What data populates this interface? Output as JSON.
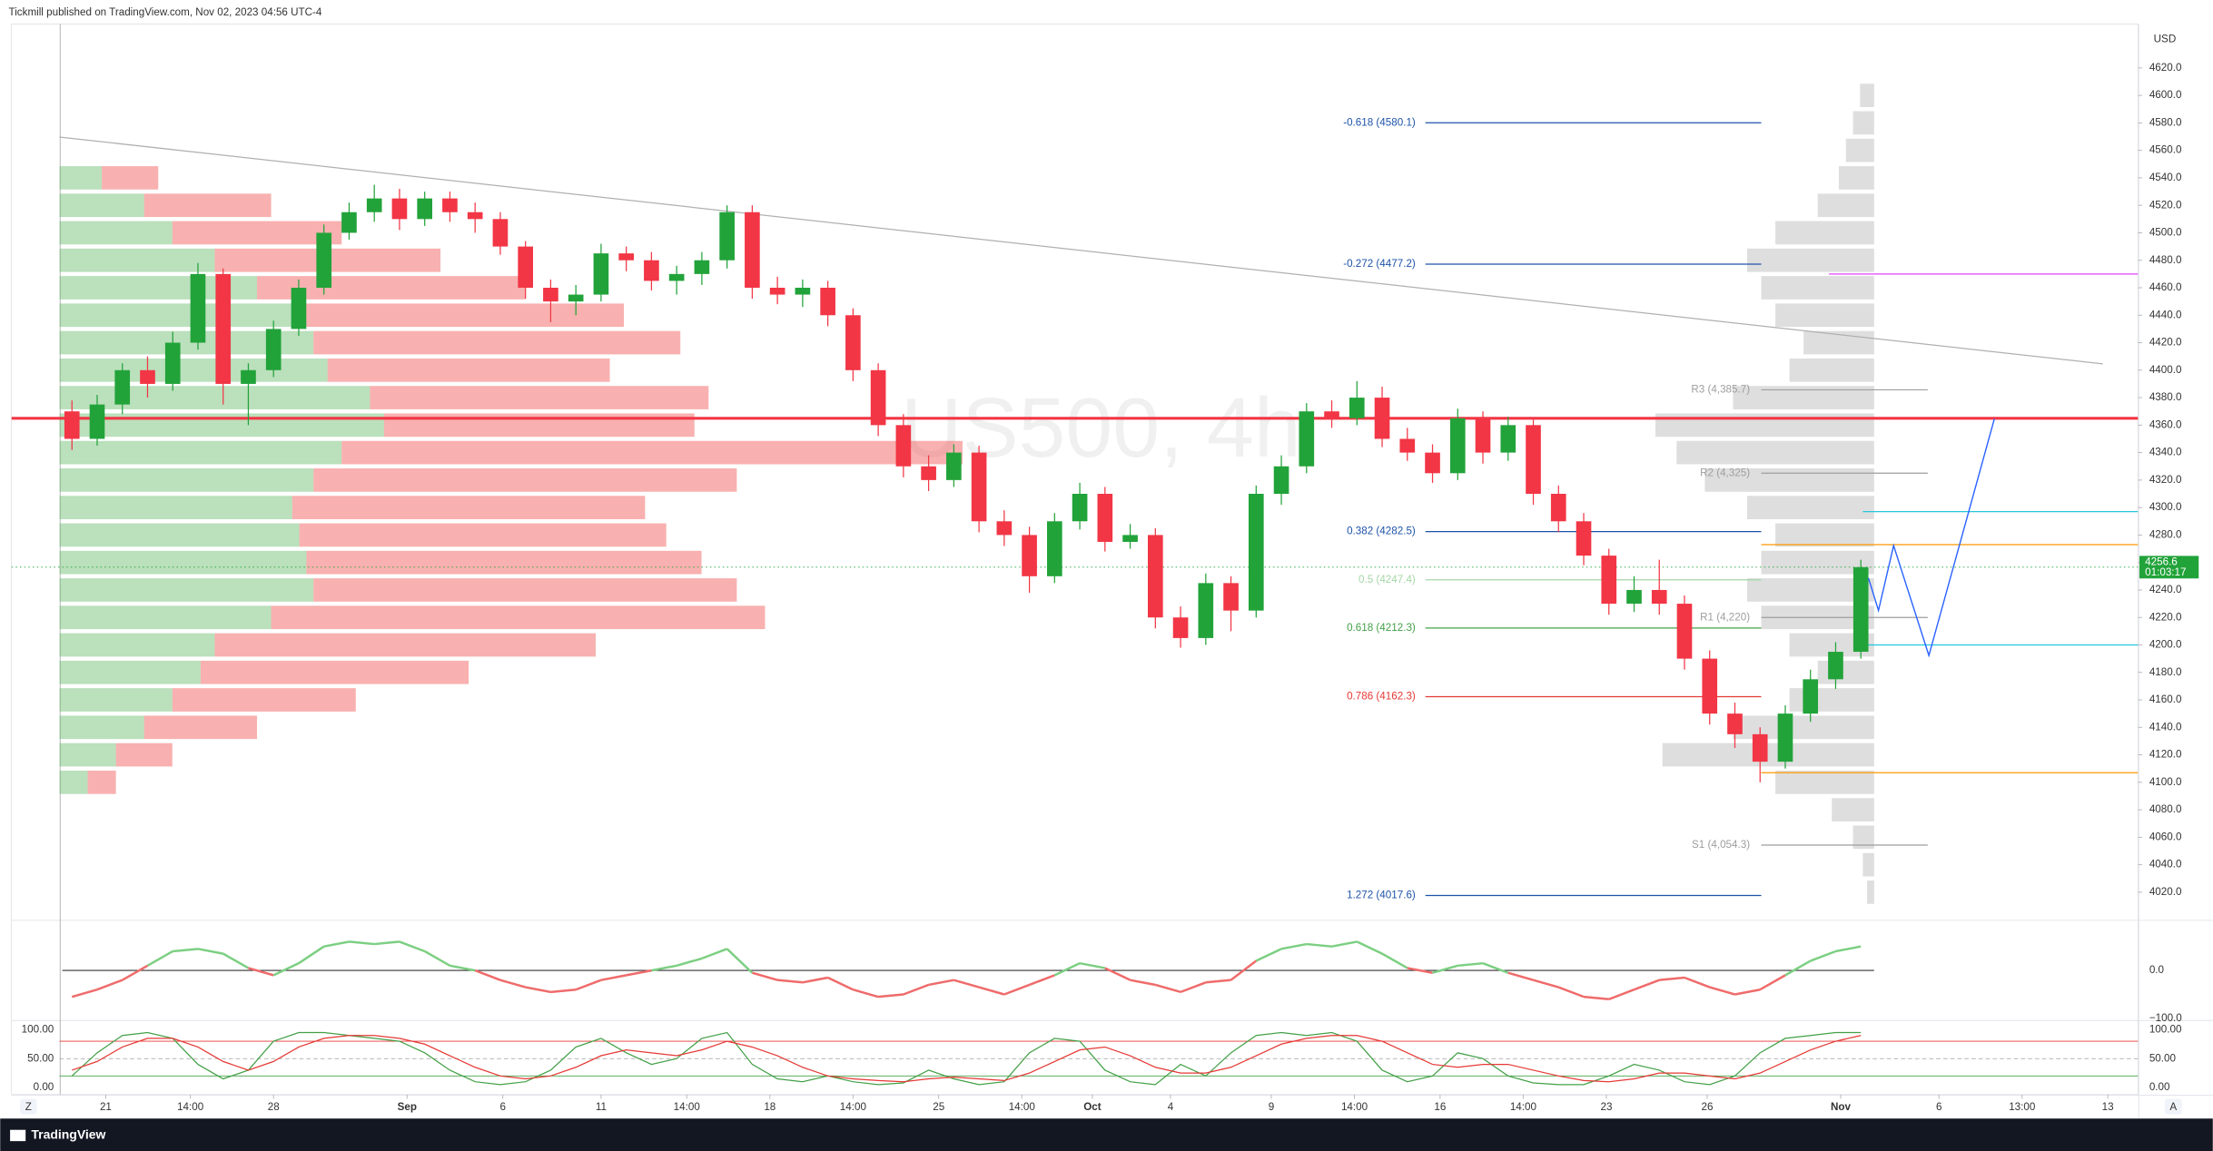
{
  "header": {
    "text": "Tickmill published on TradingView.com, Nov 02, 2023 04:56 UTC-4"
  },
  "footer": {
    "brand": "TradingView",
    "left_button": "Z",
    "right_button": "A"
  },
  "chart_data": {
    "type": "candlestick",
    "watermark": "US500, 4h",
    "currency": "USD",
    "up_color": "#22a33a",
    "down_color": "#f23645",
    "xlim": [
      -2.4,
      82
    ],
    "ylim": [
      4000,
      4652
    ],
    "xticks": [
      {
        "value": 1.34,
        "label": "21"
      },
      {
        "value": 4.7,
        "label": "14:00"
      },
      {
        "value": 8.0,
        "label": "28"
      },
      {
        "value": 13.3,
        "label": "Sep"
      },
      {
        "value": 17.1,
        "label": "6"
      },
      {
        "value": 21.0,
        "label": "11"
      },
      {
        "value": 24.4,
        "label": "14:00"
      },
      {
        "value": 27.7,
        "label": "18"
      },
      {
        "value": 31.0,
        "label": "14:00"
      },
      {
        "value": 34.4,
        "label": "25"
      },
      {
        "value": 37.7,
        "label": "14:00"
      },
      {
        "value": 40.5,
        "label": "Oct"
      },
      {
        "value": 43.6,
        "label": "4"
      },
      {
        "value": 47.6,
        "label": "9"
      },
      {
        "value": 50.9,
        "label": "14:00"
      },
      {
        "value": 54.3,
        "label": "16"
      },
      {
        "value": 57.6,
        "label": "14:00"
      },
      {
        "value": 60.9,
        "label": "23"
      },
      {
        "value": 64.9,
        "label": "26"
      },
      {
        "value": 70.2,
        "label": "Nov"
      },
      {
        "value": 74.1,
        "label": "6"
      },
      {
        "value": 77.4,
        "label": "13:00"
      },
      {
        "value": 80.8,
        "label": "13"
      }
    ],
    "yticks": [
      {
        "value": 4020,
        "label": "4020.0"
      },
      {
        "value": 4040,
        "label": "4040.0"
      },
      {
        "value": 4060,
        "label": "4060.0"
      },
      {
        "value": 4080,
        "label": "4080.0"
      },
      {
        "value": 4100,
        "label": "4100.0"
      },
      {
        "value": 4120,
        "label": "4120.0"
      },
      {
        "value": 4140,
        "label": "4140.0"
      },
      {
        "value": 4160,
        "label": "4160.0"
      },
      {
        "value": 4180,
        "label": "4180.0"
      },
      {
        "value": 4200,
        "label": "4200.0"
      },
      {
        "value": 4220,
        "label": "4220.0"
      },
      {
        "value": 4240,
        "label": "4240.0"
      },
      {
        "value": 4260,
        "label": "4260.0"
      },
      {
        "value": 4280,
        "label": "4280.0"
      },
      {
        "value": 4300,
        "label": "4300.0"
      },
      {
        "value": 4320,
        "label": "4320.0"
      },
      {
        "value": 4340,
        "label": "4340.0"
      },
      {
        "value": 4360,
        "label": "4360.0"
      },
      {
        "value": 4380,
        "label": "4380.0"
      },
      {
        "value": 4400,
        "label": "4400.0"
      },
      {
        "value": 4420,
        "label": "4420.0"
      },
      {
        "value": 4440,
        "label": "4440.0"
      },
      {
        "value": 4460,
        "label": "4460.0"
      },
      {
        "value": 4480,
        "label": "4480.0"
      },
      {
        "value": 4500,
        "label": "4500.0"
      },
      {
        "value": 4520,
        "label": "4520.0"
      },
      {
        "value": 4540,
        "label": "4540.0"
      },
      {
        "value": 4560,
        "label": "4560.0"
      },
      {
        "value": 4580,
        "label": "4580.0"
      },
      {
        "value": 4600,
        "label": "4600.0"
      },
      {
        "value": 4620,
        "label": "4620.0"
      }
    ],
    "candles": [
      [
        4370,
        4378,
        4342,
        4350
      ],
      [
        4350,
        4382,
        4345,
        4375
      ],
      [
        4375,
        4405,
        4368,
        4400
      ],
      [
        4400,
        4410,
        4380,
        4390
      ],
      [
        4390,
        4428,
        4385,
        4420
      ],
      [
        4420,
        4478,
        4415,
        4470
      ],
      [
        4470,
        4474,
        4375,
        4390
      ],
      [
        4390,
        4405,
        4360,
        4400
      ],
      [
        4400,
        4436,
        4395,
        4430
      ],
      [
        4430,
        4466,
        4425,
        4460
      ],
      [
        4460,
        4506,
        4455,
        4500
      ],
      [
        4500,
        4522,
        4495,
        4515
      ],
      [
        4515,
        4535,
        4508,
        4525
      ],
      [
        4525,
        4532,
        4502,
        4510
      ],
      [
        4510,
        4530,
        4505,
        4525
      ],
      [
        4525,
        4530,
        4508,
        4515
      ],
      [
        4515,
        4522,
        4500,
        4510
      ],
      [
        4510,
        4515,
        4484,
        4490
      ],
      [
        4490,
        4494,
        4452,
        4460
      ],
      [
        4460,
        4466,
        4435,
        4450
      ],
      [
        4450,
        4462,
        4440,
        4455
      ],
      [
        4455,
        4492,
        4450,
        4485
      ],
      [
        4485,
        4490,
        4472,
        4480
      ],
      [
        4480,
        4486,
        4458,
        4465
      ],
      [
        4465,
        4476,
        4455,
        4470
      ],
      [
        4470,
        4486,
        4462,
        4480
      ],
      [
        4480,
        4520,
        4474,
        4515
      ],
      [
        4515,
        4520,
        4452,
        4460
      ],
      [
        4460,
        4468,
        4448,
        4455
      ],
      [
        4455,
        4466,
        4446,
        4460
      ],
      [
        4460,
        4465,
        4432,
        4440
      ],
      [
        4440,
        4445,
        4392,
        4400
      ],
      [
        4400,
        4405,
        4352,
        4360
      ],
      [
        4360,
        4368,
        4322,
        4330
      ],
      [
        4330,
        4338,
        4312,
        4320
      ],
      [
        4320,
        4346,
        4315,
        4340
      ],
      [
        4340,
        4345,
        4282,
        4290
      ],
      [
        4290,
        4298,
        4272,
        4280
      ],
      [
        4280,
        4286,
        4238,
        4250
      ],
      [
        4250,
        4296,
        4245,
        4290
      ],
      [
        4290,
        4318,
        4284,
        4310
      ],
      [
        4310,
        4315,
        4268,
        4275
      ],
      [
        4275,
        4288,
        4270,
        4280
      ],
      [
        4280,
        4285,
        4212,
        4220
      ],
      [
        4220,
        4228,
        4198,
        4205
      ],
      [
        4205,
        4252,
        4200,
        4245
      ],
      [
        4245,
        4250,
        4210,
        4225
      ],
      [
        4225,
        4316,
        4220,
        4310
      ],
      [
        4310,
        4338,
        4302,
        4330
      ],
      [
        4330,
        4376,
        4325,
        4370
      ],
      [
        4370,
        4378,
        4358,
        4365
      ],
      [
        4365,
        4392,
        4360,
        4380
      ],
      [
        4380,
        4388,
        4344,
        4350
      ],
      [
        4350,
        4358,
        4334,
        4340
      ],
      [
        4340,
        4346,
        4318,
        4325
      ],
      [
        4325,
        4372,
        4320,
        4365
      ],
      [
        4365,
        4370,
        4332,
        4340
      ],
      [
        4340,
        4366,
        4334,
        4360
      ],
      [
        4360,
        4364,
        4302,
        4310
      ],
      [
        4310,
        4316,
        4282,
        4290
      ],
      [
        4290,
        4296,
        4258,
        4265
      ],
      [
        4265,
        4270,
        4222,
        4230
      ],
      [
        4230,
        4250,
        4224,
        4240
      ],
      [
        4240,
        4262,
        4222,
        4230
      ],
      [
        4230,
        4236,
        4182,
        4190
      ],
      [
        4190,
        4196,
        4142,
        4150
      ],
      [
        4150,
        4158,
        4125,
        4135
      ],
      [
        4135,
        4140,
        4100,
        4115
      ],
      [
        4115,
        4156,
        4110,
        4150
      ],
      [
        4150,
        4182,
        4144,
        4175
      ],
      [
        4175,
        4202,
        4168,
        4195
      ],
      [
        4195,
        4262,
        4190,
        4256.6
      ]
    ],
    "last_price": {
      "value": 4256.6,
      "countdown": "01:03:17",
      "color": "#22a33a"
    },
    "fib_levels": [
      {
        "label": "-0.618 (4580.1)",
        "value": 4580.1,
        "color": "#1e53a8"
      },
      {
        "label": "-0.272 (4477.2)",
        "value": 4477.2,
        "color": "#1e53a8"
      },
      {
        "label": "0.382 (4282.5)",
        "value": 4282.5,
        "color": "#1e53a8"
      },
      {
        "label": "0.5 (4247.4)",
        "value": 4247.4,
        "color": "#a5d6a7"
      },
      {
        "label": "0.618 (4212.3)",
        "value": 4212.3,
        "color": "#43a047"
      },
      {
        "label": "0.786 (4162.3)",
        "value": 4162.3,
        "color": "#e53935"
      },
      {
        "label": "1.272 (4017.6)",
        "value": 4017.6,
        "color": "#1e53a8"
      }
    ],
    "pivots": [
      {
        "label": "R3 (4,385.7)",
        "value": 4385.7
      },
      {
        "label": "R2 (4,325)",
        "value": 4325
      },
      {
        "label": "R1 (4,220)",
        "value": 4220
      },
      {
        "label": "S1 (4,054.3)",
        "value": 4054.3
      }
    ],
    "levels": [
      {
        "value": 4365,
        "color": "#f23645"
      },
      {
        "value": 4470,
        "color": "#e040fb"
      },
      {
        "value": 4297,
        "color": "#26c6da"
      },
      {
        "value": 4200,
        "color": "#26c6da"
      },
      {
        "value": 4273,
        "color": "#ff9800"
      },
      {
        "value": 4107,
        "color": "#ff9800"
      }
    ],
    "trendline": {
      "x": [
        -0.5,
        80.6
      ],
      "y": [
        4569.7,
        4404.6
      ],
      "color": "#b0b0b0"
    },
    "projection": {
      "x": [
        71.3,
        71.7,
        72.3,
        73.7,
        76.3
      ],
      "y": [
        4248.7,
        4225.1,
        4272.3,
        4192.3,
        4364.6
      ],
      "color": "#2962ff"
    },
    "volume_profile_left": {
      "bins": [
        4100,
        4120,
        4140,
        4160,
        4180,
        4200,
        4220,
        4240,
        4260,
        4280,
        4300,
        4320,
        4340,
        4360,
        4380,
        4400,
        4420,
        4440,
        4460,
        4480,
        4500,
        4520,
        4540
      ],
      "up": [
        20,
        40,
        60,
        80,
        100,
        110,
        150,
        180,
        175,
        170,
        165,
        180,
        200,
        230,
        220,
        190,
        180,
        170,
        140,
        110,
        80,
        60,
        30
      ],
      "down": [
        20,
        40,
        80,
        130,
        190,
        270,
        350,
        300,
        280,
        260,
        250,
        300,
        440,
        220,
        240,
        200,
        260,
        230,
        190,
        160,
        120,
        90,
        40
      ],
      "up_color": "#66bb6a",
      "down_color": "#ef5350"
    },
    "volume_profile_right": {
      "bins": [
        4020,
        4040,
        4060,
        4080,
        4100,
        4120,
        4140,
        4160,
        4180,
        4200,
        4220,
        4240,
        4260,
        4280,
        4300,
        4320,
        4340,
        4360,
        4380,
        4400,
        4420,
        4440,
        4460,
        4480,
        4500,
        4520,
        4540,
        4560,
        4580,
        4600
      ],
      "values": [
        5,
        8,
        15,
        30,
        70,
        150,
        100,
        60,
        40,
        60,
        80,
        90,
        80,
        70,
        90,
        120,
        140,
        155,
        100,
        60,
        50,
        70,
        80,
        90,
        70,
        40,
        25,
        20,
        15,
        10
      ],
      "color": "#c8c8c8"
    },
    "oscillator": {
      "ylim": [
        -103,
        103
      ],
      "yticks": [
        {
          "value": 0,
          "label": "0.0"
        },
        {
          "value": -100,
          "label": "−100.0"
        }
      ],
      "up_color": "#7ccf82",
      "down_color": "#ef6b6b",
      "values": [
        -55,
        -40,
        -20,
        10,
        40,
        45,
        35,
        5,
        -10,
        15,
        50,
        60,
        55,
        60,
        40,
        10,
        0,
        -20,
        -35,
        -45,
        -40,
        -20,
        -10,
        0,
        10,
        25,
        45,
        -5,
        -20,
        -25,
        -15,
        -40,
        -55,
        -50,
        -30,
        -20,
        -35,
        -50,
        -30,
        -10,
        15,
        5,
        -20,
        -30,
        -45,
        -25,
        -20,
        20,
        45,
        55,
        50,
        60,
        35,
        5,
        -5,
        10,
        15,
        -5,
        -20,
        -35,
        -55,
        -60,
        -40,
        -20,
        -15,
        -35,
        -50,
        -40,
        -10,
        20,
        40,
        50
      ]
    },
    "stochastic": {
      "ylim": [
        -12.2,
        114.6
      ],
      "yticks": [
        {
          "value": 100,
          "label": "100.00"
        },
        {
          "value": 50,
          "label": "50.00"
        },
        {
          "value": 0,
          "label": "0.00"
        }
      ],
      "bands": [
        80,
        20
      ],
      "series": [
        {
          "color": "#43a047",
          "values": [
            20,
            60,
            90,
            95,
            85,
            40,
            15,
            30,
            80,
            95,
            95,
            90,
            85,
            80,
            60,
            30,
            10,
            5,
            10,
            30,
            70,
            85,
            60,
            40,
            50,
            85,
            95,
            40,
            15,
            10,
            20,
            10,
            5,
            8,
            30,
            15,
            5,
            10,
            60,
            85,
            80,
            30,
            10,
            5,
            40,
            20,
            60,
            90,
            95,
            90,
            95,
            80,
            30,
            10,
            20,
            60,
            50,
            20,
            8,
            5,
            5,
            20,
            40,
            30,
            10,
            5,
            20,
            60,
            85,
            90,
            95,
            95
          ]
        },
        {
          "color": "#e53935",
          "values": [
            30,
            45,
            70,
            85,
            85,
            70,
            45,
            30,
            45,
            70,
            85,
            90,
            90,
            85,
            75,
            55,
            35,
            20,
            15,
            20,
            35,
            55,
            65,
            60,
            55,
            65,
            80,
            70,
            55,
            35,
            20,
            15,
            12,
            10,
            15,
            18,
            15,
            12,
            25,
            45,
            65,
            70,
            55,
            35,
            25,
            25,
            35,
            55,
            75,
            85,
            90,
            90,
            80,
            60,
            40,
            35,
            40,
            40,
            30,
            20,
            12,
            10,
            15,
            25,
            25,
            20,
            15,
            25,
            45,
            65,
            80,
            90
          ]
        }
      ]
    }
  }
}
